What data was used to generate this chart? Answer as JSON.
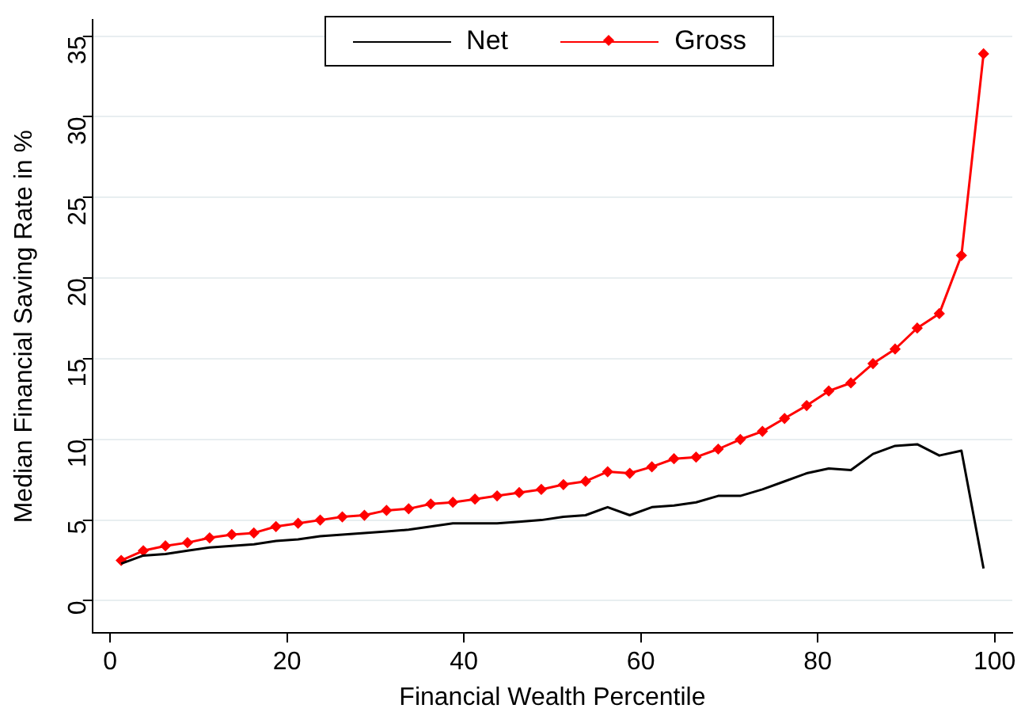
{
  "chart_data": {
    "type": "line",
    "xlabel": "Financial Wealth Percentile",
    "ylabel": "Median Financial Saving Rate in %",
    "x": [
      1.25,
      3.75,
      6.25,
      8.75,
      11.25,
      13.75,
      16.25,
      18.75,
      21.25,
      23.75,
      26.25,
      28.75,
      31.25,
      33.75,
      36.25,
      38.75,
      41.25,
      43.75,
      46.25,
      48.75,
      51.25,
      53.75,
      56.25,
      58.75,
      61.25,
      63.75,
      66.25,
      68.75,
      71.25,
      73.75,
      76.25,
      78.75,
      81.25,
      83.75,
      86.25,
      88.75,
      91.25,
      93.75,
      96.25,
      98.75
    ],
    "series": [
      {
        "name": "Net",
        "color": "#000000",
        "marker": "none",
        "values": [
          2.3,
          2.8,
          2.9,
          3.1,
          3.3,
          3.4,
          3.5,
          3.7,
          3.8,
          4.0,
          4.1,
          4.2,
          4.3,
          4.4,
          4.6,
          4.8,
          4.8,
          4.8,
          4.9,
          5.0,
          5.2,
          5.3,
          5.8,
          5.3,
          5.8,
          5.9,
          6.1,
          6.5,
          6.5,
          6.9,
          7.4,
          7.9,
          8.2,
          8.1,
          9.1,
          9.6,
          9.7,
          9.0,
          9.3,
          2.0
        ]
      },
      {
        "name": "Gross",
        "color": "#ff0000",
        "marker": "diamond",
        "values": [
          2.5,
          3.1,
          3.4,
          3.6,
          3.9,
          4.1,
          4.2,
          4.6,
          4.8,
          5.0,
          5.2,
          5.3,
          5.6,
          5.7,
          6.0,
          6.1,
          6.3,
          6.5,
          6.7,
          6.9,
          7.2,
          7.4,
          8.0,
          7.9,
          8.3,
          8.8,
          8.9,
          9.4,
          10.0,
          10.5,
          11.3,
          12.1,
          13.0,
          13.5,
          14.7,
          15.6,
          16.9,
          17.8,
          21.4,
          33.9
        ]
      }
    ],
    "xlim": [
      -2,
      102
    ],
    "xticks": [
      0,
      20,
      40,
      60,
      80,
      100
    ],
    "ylim": [
      -2,
      36
    ],
    "yticks": [
      0,
      5,
      10,
      15,
      20,
      25,
      30,
      35
    ],
    "grid": "y",
    "legend": "top",
    "line_style": "solid"
  }
}
